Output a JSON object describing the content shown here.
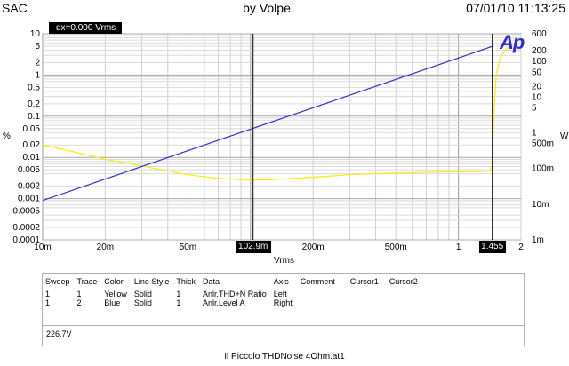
{
  "header": {
    "left": "SAC",
    "center": "by Volpe",
    "right": "07/01/10 11:13:25"
  },
  "logo_text": "Ap",
  "cursor_readout": "dx=0.000  Vrms",
  "chart_data": {
    "type": "line",
    "xlabel": "Vrms",
    "x_scale": "log",
    "xlim": [
      0.01,
      2
    ],
    "x_ticks": [
      {
        "v": 0.01,
        "label": "10m"
      },
      {
        "v": 0.02,
        "label": "20m"
      },
      {
        "v": 0.05,
        "label": "50m"
      },
      {
        "v": 0.2,
        "label": "200m"
      },
      {
        "v": 0.5,
        "label": "500m"
      },
      {
        "v": 1,
        "label": "1"
      },
      {
        "v": 2,
        "label": "2"
      }
    ],
    "left_axis": {
      "label": "%",
      "scale": "log",
      "lim": [
        0.0001,
        10
      ],
      "ticks": [
        {
          "v": 10,
          "label": "10"
        },
        {
          "v": 5,
          "label": "5"
        },
        {
          "v": 2,
          "label": "2"
        },
        {
          "v": 1,
          "label": "1"
        },
        {
          "v": 0.5,
          "label": "0.5"
        },
        {
          "v": 0.2,
          "label": "0.2"
        },
        {
          "v": 0.1,
          "label": "0.1"
        },
        {
          "v": 0.05,
          "label": "0.05"
        },
        {
          "v": 0.02,
          "label": "0.02"
        },
        {
          "v": 0.01,
          "label": "0.01"
        },
        {
          "v": 0.005,
          "label": "0.005"
        },
        {
          "v": 0.002,
          "label": "0.002"
        },
        {
          "v": 0.001,
          "label": "0.001"
        },
        {
          "v": 0.0005,
          "label": "0.0005"
        },
        {
          "v": 0.0002,
          "label": "0.0002"
        },
        {
          "v": 0.0001,
          "label": "0.0001"
        }
      ]
    },
    "right_axis": {
      "label": "W",
      "scale": "log",
      "lim": [
        0.001,
        600
      ],
      "ticks": [
        {
          "v": 600,
          "label": "600"
        },
        {
          "v": 200,
          "label": "200"
        },
        {
          "v": 100,
          "label": "100"
        },
        {
          "v": 50,
          "label": "50"
        },
        {
          "v": 20,
          "label": "20"
        },
        {
          "v": 10,
          "label": "10"
        },
        {
          "v": 5,
          "label": "5"
        },
        {
          "v": 1,
          "label": "1"
        },
        {
          "v": 0.5,
          "label": "500m"
        },
        {
          "v": 0.1,
          "label": "100m"
        },
        {
          "v": 0.01,
          "label": "10m"
        },
        {
          "v": 0.001,
          "label": "1m"
        }
      ]
    },
    "series": [
      {
        "color": "#f5f000",
        "axis": "left",
        "points": [
          [
            0.01,
            0.02
          ],
          [
            0.013,
            0.015
          ],
          [
            0.02,
            0.009
          ],
          [
            0.03,
            0.0062
          ],
          [
            0.05,
            0.0038
          ],
          [
            0.07,
            0.0031
          ],
          [
            0.1,
            0.0028
          ],
          [
            0.13,
            0.0029
          ],
          [
            0.2,
            0.0033
          ],
          [
            0.3,
            0.0038
          ],
          [
            0.5,
            0.0042
          ],
          [
            0.8,
            0.0044
          ],
          [
            1.2,
            0.0045
          ],
          [
            1.4,
            0.0046
          ],
          [
            1.45,
            0.006
          ],
          [
            1.48,
            0.1
          ],
          [
            1.52,
            1
          ],
          [
            1.6,
            3
          ],
          [
            1.75,
            5
          ],
          [
            1.9,
            6
          ]
        ]
      },
      {
        "color": "#2d2dd6",
        "axis": "right",
        "points": [
          [
            0.01,
            0.0127
          ],
          [
            1.45,
            264
          ]
        ]
      }
    ],
    "cursors": [
      {
        "x": 0.1029,
        "label": "102.9m"
      },
      {
        "x": 1.455,
        "label": "1.455"
      }
    ]
  },
  "legend": {
    "headers": [
      "Sweep",
      "Trace",
      "Color",
      "Line Style",
      "Thick",
      "Data",
      "Axis",
      "Comment",
      "Cursor1",
      "Cursor2"
    ],
    "rows": [
      [
        "1",
        "1",
        "Yellow",
        "Solid",
        "1",
        "Anlr.THD+N Ratio",
        "Left",
        "",
        "",
        ""
      ],
      [
        "1",
        "2",
        "Blue",
        "Solid",
        "1",
        "Anlr.Level A",
        "Right",
        "",
        "",
        ""
      ]
    ]
  },
  "footnote": "226.7V",
  "filename": "Il Piccolo THDNoise 4Ohm.at1"
}
